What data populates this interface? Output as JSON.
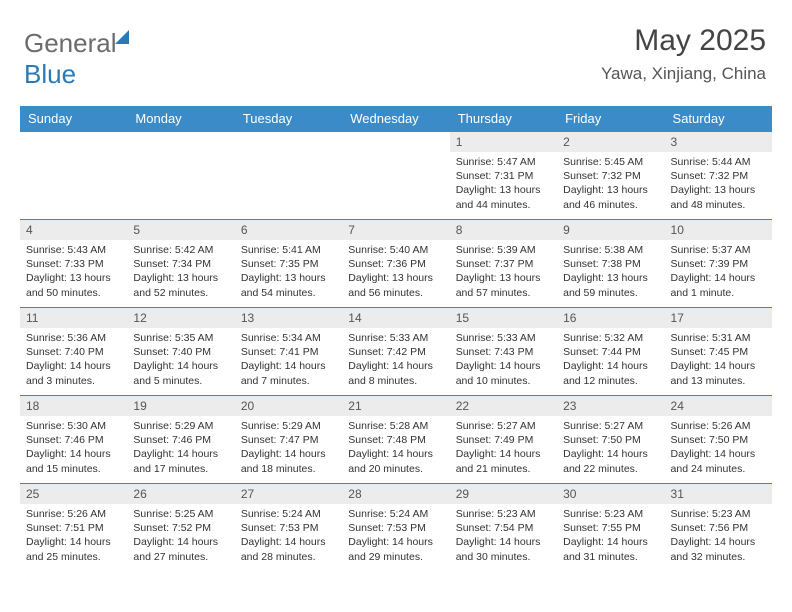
{
  "brand": {
    "part1": "General",
    "part2": "Blue"
  },
  "header": {
    "month_year": "May 2025",
    "location": "Yawa, Xinjiang, China"
  },
  "colors": {
    "header_bg": "#3b8bc9",
    "header_fg": "#ffffff",
    "daynum_bg": "#ececec",
    "rule": "#3b8bc9",
    "brand_gray": "#6b6b6b",
    "brand_blue": "#2a7ab8"
  },
  "columns": [
    "Sunday",
    "Monday",
    "Tuesday",
    "Wednesday",
    "Thursday",
    "Friday",
    "Saturday"
  ],
  "weeks": [
    [
      null,
      null,
      null,
      null,
      {
        "d": "1",
        "sr": "5:47 AM",
        "ss": "7:31 PM",
        "dl": "13 hours and 44 minutes."
      },
      {
        "d": "2",
        "sr": "5:45 AM",
        "ss": "7:32 PM",
        "dl": "13 hours and 46 minutes."
      },
      {
        "d": "3",
        "sr": "5:44 AM",
        "ss": "7:32 PM",
        "dl": "13 hours and 48 minutes."
      }
    ],
    [
      {
        "d": "4",
        "sr": "5:43 AM",
        "ss": "7:33 PM",
        "dl": "13 hours and 50 minutes."
      },
      {
        "d": "5",
        "sr": "5:42 AM",
        "ss": "7:34 PM",
        "dl": "13 hours and 52 minutes."
      },
      {
        "d": "6",
        "sr": "5:41 AM",
        "ss": "7:35 PM",
        "dl": "13 hours and 54 minutes."
      },
      {
        "d": "7",
        "sr": "5:40 AM",
        "ss": "7:36 PM",
        "dl": "13 hours and 56 minutes."
      },
      {
        "d": "8",
        "sr": "5:39 AM",
        "ss": "7:37 PM",
        "dl": "13 hours and 57 minutes."
      },
      {
        "d": "9",
        "sr": "5:38 AM",
        "ss": "7:38 PM",
        "dl": "13 hours and 59 minutes."
      },
      {
        "d": "10",
        "sr": "5:37 AM",
        "ss": "7:39 PM",
        "dl": "14 hours and 1 minute."
      }
    ],
    [
      {
        "d": "11",
        "sr": "5:36 AM",
        "ss": "7:40 PM",
        "dl": "14 hours and 3 minutes."
      },
      {
        "d": "12",
        "sr": "5:35 AM",
        "ss": "7:40 PM",
        "dl": "14 hours and 5 minutes."
      },
      {
        "d": "13",
        "sr": "5:34 AM",
        "ss": "7:41 PM",
        "dl": "14 hours and 7 minutes."
      },
      {
        "d": "14",
        "sr": "5:33 AM",
        "ss": "7:42 PM",
        "dl": "14 hours and 8 minutes."
      },
      {
        "d": "15",
        "sr": "5:33 AM",
        "ss": "7:43 PM",
        "dl": "14 hours and 10 minutes."
      },
      {
        "d": "16",
        "sr": "5:32 AM",
        "ss": "7:44 PM",
        "dl": "14 hours and 12 minutes."
      },
      {
        "d": "17",
        "sr": "5:31 AM",
        "ss": "7:45 PM",
        "dl": "14 hours and 13 minutes."
      }
    ],
    [
      {
        "d": "18",
        "sr": "5:30 AM",
        "ss": "7:46 PM",
        "dl": "14 hours and 15 minutes."
      },
      {
        "d": "19",
        "sr": "5:29 AM",
        "ss": "7:46 PM",
        "dl": "14 hours and 17 minutes."
      },
      {
        "d": "20",
        "sr": "5:29 AM",
        "ss": "7:47 PM",
        "dl": "14 hours and 18 minutes."
      },
      {
        "d": "21",
        "sr": "5:28 AM",
        "ss": "7:48 PM",
        "dl": "14 hours and 20 minutes."
      },
      {
        "d": "22",
        "sr": "5:27 AM",
        "ss": "7:49 PM",
        "dl": "14 hours and 21 minutes."
      },
      {
        "d": "23",
        "sr": "5:27 AM",
        "ss": "7:50 PM",
        "dl": "14 hours and 22 minutes."
      },
      {
        "d": "24",
        "sr": "5:26 AM",
        "ss": "7:50 PM",
        "dl": "14 hours and 24 minutes."
      }
    ],
    [
      {
        "d": "25",
        "sr": "5:26 AM",
        "ss": "7:51 PM",
        "dl": "14 hours and 25 minutes."
      },
      {
        "d": "26",
        "sr": "5:25 AM",
        "ss": "7:52 PM",
        "dl": "14 hours and 27 minutes."
      },
      {
        "d": "27",
        "sr": "5:24 AM",
        "ss": "7:53 PM",
        "dl": "14 hours and 28 minutes."
      },
      {
        "d": "28",
        "sr": "5:24 AM",
        "ss": "7:53 PM",
        "dl": "14 hours and 29 minutes."
      },
      {
        "d": "29",
        "sr": "5:23 AM",
        "ss": "7:54 PM",
        "dl": "14 hours and 30 minutes."
      },
      {
        "d": "30",
        "sr": "5:23 AM",
        "ss": "7:55 PM",
        "dl": "14 hours and 31 minutes."
      },
      {
        "d": "31",
        "sr": "5:23 AM",
        "ss": "7:56 PM",
        "dl": "14 hours and 32 minutes."
      }
    ]
  ],
  "labels": {
    "sunrise": "Sunrise: ",
    "sunset": "Sunset: ",
    "daylight": "Daylight: "
  }
}
